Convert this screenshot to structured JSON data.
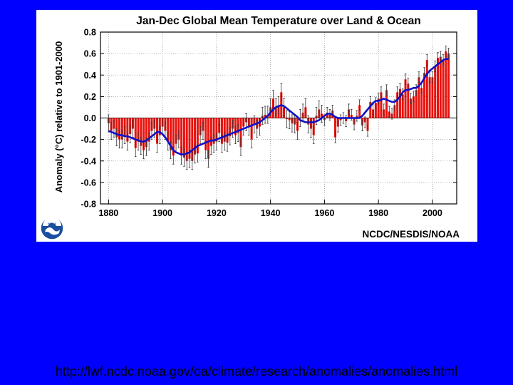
{
  "colors": {
    "background": "#0000ff",
    "panel": "#ffffff",
    "bar": "#e8130f",
    "smooth_line": "#1010c8",
    "error_bar": "#333333",
    "title_text": "#000000"
  },
  "footer": {
    "url": "http://lwf.ncdc.noaa.gov/oa/climate/research/anomalies/anomalies.html"
  },
  "logo": {
    "icon": "noaa-logo-icon",
    "text": "NOAA"
  },
  "chart_data": {
    "type": "bar",
    "title": "Jan-Dec Global Mean Temperature over Land & Ocean",
    "ylabel": "Anomaly (°C) relative to 1901-2000",
    "xlabel": "",
    "credit": "NCDC/NESDIS/NOAA",
    "xlim": [
      1877,
      2009
    ],
    "ylim": [
      -0.8,
      0.8
    ],
    "grid": true,
    "x_ticks": [
      1880,
      1900,
      1920,
      1940,
      1960,
      1980,
      2000
    ],
    "x_tick_labels": [
      "1880",
      "1900",
      "1920",
      "1940",
      "1960",
      "1980",
      "2000"
    ],
    "y_ticks": [
      0.8,
      0.6,
      0.4,
      0.2,
      0.0,
      -0.2,
      -0.4,
      -0.6,
      -0.8
    ],
    "y_tick_labels": [
      "0.8",
      "0.6",
      "0.4",
      "0.2",
      "0.0",
      "-0.2",
      "-0.4",
      "-0.6",
      "-0.8"
    ],
    "years": [
      1880,
      1881,
      1882,
      1883,
      1884,
      1885,
      1886,
      1887,
      1888,
      1889,
      1890,
      1891,
      1892,
      1893,
      1894,
      1895,
      1896,
      1897,
      1898,
      1899,
      1900,
      1901,
      1902,
      1903,
      1904,
      1905,
      1906,
      1907,
      1908,
      1909,
      1910,
      1911,
      1912,
      1913,
      1914,
      1915,
      1916,
      1917,
      1918,
      1919,
      1920,
      1921,
      1922,
      1923,
      1924,
      1925,
      1926,
      1927,
      1928,
      1929,
      1930,
      1931,
      1932,
      1933,
      1934,
      1935,
      1936,
      1937,
      1938,
      1939,
      1940,
      1941,
      1942,
      1943,
      1944,
      1945,
      1946,
      1947,
      1948,
      1949,
      1950,
      1951,
      1952,
      1953,
      1954,
      1955,
      1956,
      1957,
      1958,
      1959,
      1960,
      1961,
      1962,
      1963,
      1964,
      1965,
      1966,
      1967,
      1968,
      1969,
      1970,
      1971,
      1972,
      1973,
      1974,
      1975,
      1976,
      1977,
      1978,
      1979,
      1980,
      1981,
      1982,
      1983,
      1984,
      1985,
      1986,
      1987,
      1988,
      1989,
      1990,
      1991,
      1992,
      1993,
      1994,
      1995,
      1996,
      1997,
      1998,
      1999,
      2000,
      2001,
      2002,
      2003,
      2004,
      2005,
      2006
    ],
    "values": [
      -0.05,
      -0.12,
      -0.1,
      -0.18,
      -0.2,
      -0.2,
      -0.16,
      -0.22,
      -0.15,
      -0.1,
      -0.28,
      -0.22,
      -0.26,
      -0.3,
      -0.27,
      -0.22,
      -0.12,
      -0.1,
      -0.24,
      -0.16,
      -0.08,
      -0.12,
      -0.22,
      -0.3,
      -0.35,
      -0.24,
      -0.2,
      -0.35,
      -0.37,
      -0.4,
      -0.38,
      -0.4,
      -0.34,
      -0.33,
      -0.16,
      -0.12,
      -0.3,
      -0.38,
      -0.26,
      -0.24,
      -0.22,
      -0.14,
      -0.24,
      -0.22,
      -0.23,
      -0.17,
      -0.1,
      -0.16,
      -0.14,
      -0.27,
      -0.08,
      -0.04,
      -0.08,
      -0.2,
      -0.06,
      -0.1,
      -0.08,
      0.02,
      0.03,
      0.03,
      0.1,
      0.18,
      0.1,
      0.12,
      0.24,
      0.1,
      -0.01,
      -0.02,
      -0.05,
      -0.06,
      -0.12,
      0.0,
      0.05,
      0.1,
      -0.06,
      -0.1,
      -0.16,
      0.02,
      0.08,
      0.04,
      -0.02,
      0.05,
      0.03,
      0.07,
      -0.18,
      -0.08,
      -0.02,
      0.0,
      -0.03,
      0.08,
      0.03,
      -0.06,
      0.02,
      0.12,
      -0.07,
      -0.04,
      -0.12,
      0.15,
      0.08,
      0.14,
      0.18,
      0.24,
      0.08,
      0.26,
      0.06,
      0.04,
      0.12,
      0.24,
      0.27,
      0.22,
      0.36,
      0.32,
      0.18,
      0.2,
      0.26,
      0.38,
      0.28,
      0.42,
      0.54,
      0.38,
      0.38,
      0.48,
      0.56,
      0.57,
      0.54,
      0.62,
      0.6
    ],
    "smoothed": [
      -0.12,
      -0.13,
      -0.14,
      -0.15,
      -0.16,
      -0.16,
      -0.17,
      -0.17,
      -0.18,
      -0.19,
      -0.2,
      -0.21,
      -0.22,
      -0.22,
      -0.21,
      -0.19,
      -0.17,
      -0.15,
      -0.13,
      -0.13,
      -0.15,
      -0.18,
      -0.22,
      -0.26,
      -0.3,
      -0.32,
      -0.33,
      -0.34,
      -0.34,
      -0.33,
      -0.32,
      -0.3,
      -0.28,
      -0.26,
      -0.25,
      -0.24,
      -0.23,
      -0.22,
      -0.21,
      -0.21,
      -0.2,
      -0.19,
      -0.18,
      -0.17,
      -0.16,
      -0.15,
      -0.14,
      -0.13,
      -0.12,
      -0.11,
      -0.1,
      -0.09,
      -0.08,
      -0.07,
      -0.06,
      -0.05,
      -0.04,
      -0.02,
      0.0,
      0.02,
      0.05,
      0.08,
      0.1,
      0.11,
      0.12,
      0.11,
      0.09,
      0.07,
      0.05,
      0.03,
      0.01,
      -0.02,
      -0.03,
      -0.04,
      -0.04,
      -0.04,
      -0.04,
      -0.03,
      -0.02,
      0.0,
      0.02,
      0.04,
      0.04,
      0.03,
      0.01,
      0.0,
      0.0,
      0.0,
      0.0,
      0.0,
      0.0,
      0.0,
      0.0,
      0.0,
      0.02,
      0.05,
      0.08,
      0.11,
      0.14,
      0.16,
      0.16,
      0.17,
      0.18,
      0.17,
      0.16,
      0.15,
      0.15,
      0.17,
      0.2,
      0.24,
      0.26,
      0.26,
      0.27,
      0.28,
      0.28,
      0.3,
      0.33,
      0.37,
      0.41,
      0.44,
      0.46,
      0.48,
      0.5,
      0.52,
      0.54,
      0.55,
      0.55
    ],
    "error_margin": [
      0.08,
      0.08,
      0.08,
      0.08,
      0.08,
      0.08,
      0.08,
      0.08,
      0.08,
      0.08,
      0.08,
      0.08,
      0.08,
      0.08,
      0.08,
      0.08,
      0.08,
      0.08,
      0.08,
      0.08,
      0.08,
      0.08,
      0.08,
      0.08,
      0.08,
      0.08,
      0.08,
      0.08,
      0.08,
      0.08,
      0.08,
      0.08,
      0.08,
      0.08,
      0.08,
      0.08,
      0.08,
      0.08,
      0.08,
      0.08,
      0.08,
      0.08,
      0.08,
      0.08,
      0.08,
      0.08,
      0.08,
      0.08,
      0.08,
      0.08,
      0.08,
      0.08,
      0.08,
      0.08,
      0.08,
      0.08,
      0.08,
      0.08,
      0.08,
      0.08,
      0.08,
      0.08,
      0.08,
      0.08,
      0.08,
      0.08,
      0.08,
      0.08,
      0.08,
      0.08,
      0.08,
      0.08,
      0.08,
      0.08,
      0.08,
      0.08,
      0.08,
      0.08,
      0.08,
      0.08,
      0.05,
      0.05,
      0.05,
      0.05,
      0.05,
      0.05,
      0.05,
      0.05,
      0.05,
      0.05,
      0.05,
      0.05,
      0.05,
      0.05,
      0.05,
      0.05,
      0.05,
      0.05,
      0.05,
      0.05,
      0.05,
      0.05,
      0.05,
      0.05,
      0.05,
      0.05,
      0.05,
      0.05,
      0.05,
      0.05,
      0.05,
      0.05,
      0.05,
      0.05,
      0.05,
      0.05,
      0.05,
      0.05,
      0.05,
      0.05,
      0.05,
      0.05,
      0.05,
      0.05,
      0.05,
      0.05,
      0.05
    ]
  }
}
